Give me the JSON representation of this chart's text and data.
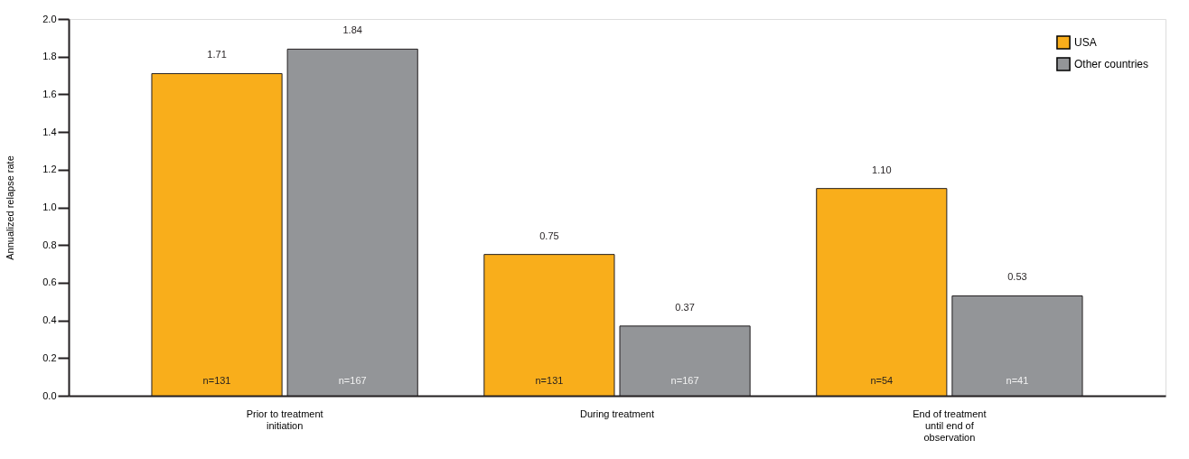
{
  "chart_data": {
    "type": "bar",
    "ylabel": "Annualized relapse rate",
    "categories": [
      "Prior to treatment initiation",
      "During treatment",
      "End of treatment until end of observation"
    ],
    "series": [
      {
        "name": "USA",
        "color": "#f9ae1b",
        "values": [
          1.71,
          0.75,
          1.1
        ]
      },
      {
        "name": "Other countries",
        "color": "#939598",
        "values": [
          1.84,
          0.37,
          0.53
        ]
      }
    ],
    "value_labels": [
      [
        "1.71",
        "0.75",
        "1.10"
      ],
      [
        "1.84",
        "0.37",
        "0.53"
      ]
    ],
    "annotations": [
      "n=131",
      "n=167",
      "n=131",
      "n=167",
      "n=54",
      "n=41"
    ],
    "ylim": [
      0,
      2.0
    ],
    "yticks": [
      {
        "value": 0,
        "label": "0.0"
      },
      {
        "value": 0.2,
        "label": "0.2"
      },
      {
        "value": 0.4,
        "label": "0.4"
      },
      {
        "value": 0.6,
        "label": "0.6"
      },
      {
        "value": 0.8,
        "label": "0.8"
      },
      {
        "value": 1.0,
        "label": "1.0"
      },
      {
        "value": 1.2,
        "label": "1.2"
      },
      {
        "value": 1.4,
        "label": "1.4"
      },
      {
        "value": 1.6,
        "label": "1.6"
      },
      {
        "value": 1.8,
        "label": "1.8"
      },
      {
        "value": 2.0,
        "label": "2.0"
      }
    ],
    "grid": false,
    "legend": "top right"
  }
}
